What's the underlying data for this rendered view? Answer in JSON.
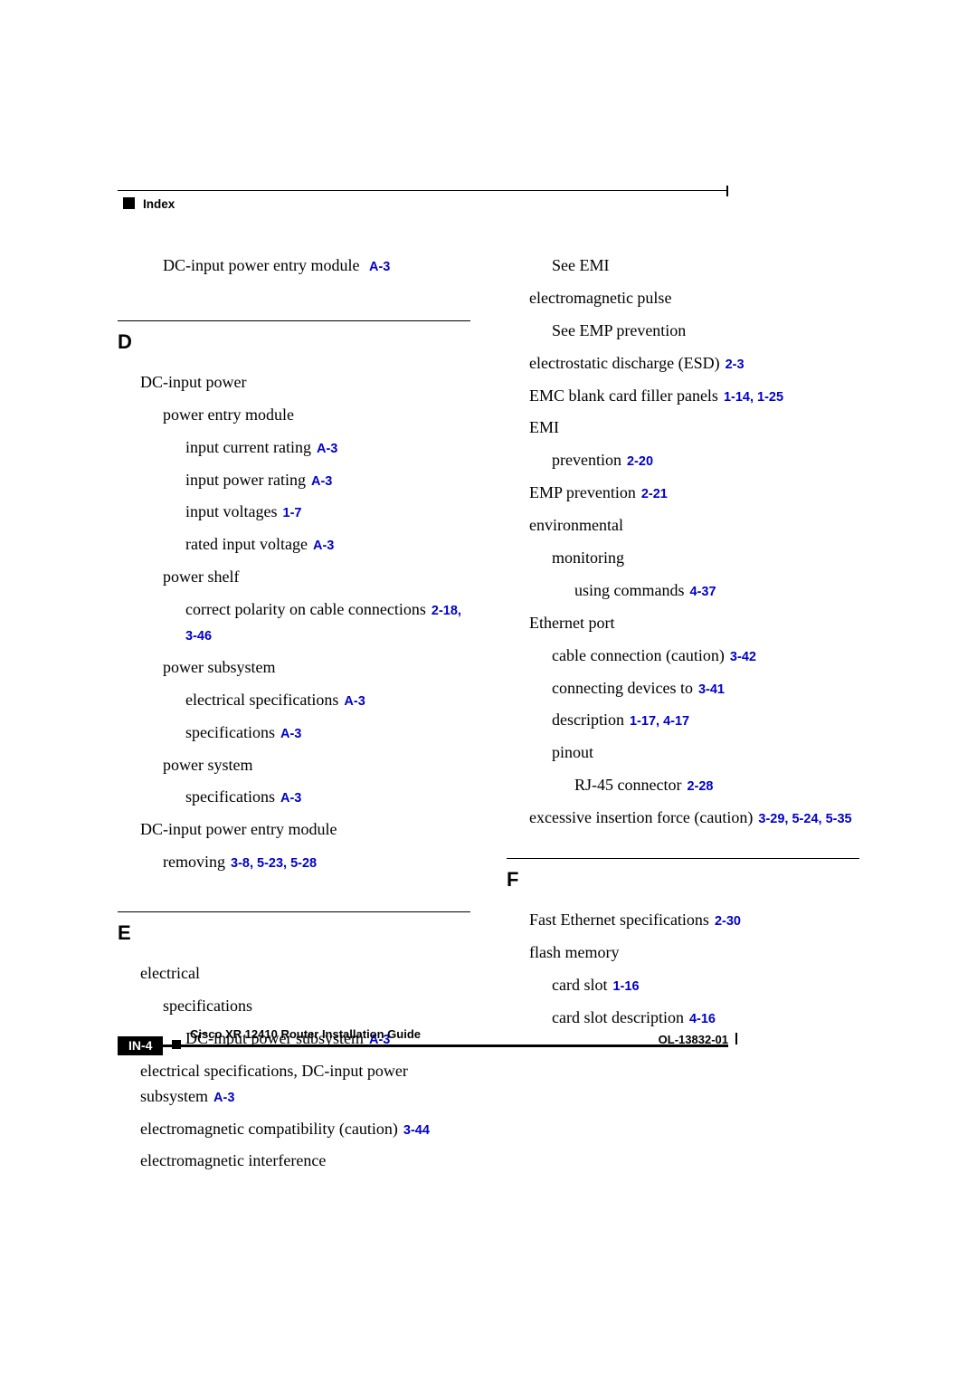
{
  "header": {
    "label": "Index"
  },
  "footer": {
    "title": "Cisco XR 12410 Router Installation Guide",
    "page": "IN-4",
    "doc": "OL-13832-01"
  },
  "link_color": "#0000cc",
  "col1": {
    "pre": {
      "text": "DC-input power entry module",
      "refs": "A-3",
      "lvl": 2
    },
    "sectD": {
      "letter": "D",
      "entries": [
        {
          "text": "DC-input power",
          "lvl": 1
        },
        {
          "text": "power entry module",
          "lvl": 2
        },
        {
          "text": "input current rating",
          "refs": "A-3",
          "lvl": 3
        },
        {
          "text": "input power rating",
          "refs": "A-3",
          "lvl": 3
        },
        {
          "text": "input voltages",
          "refs": "1-7",
          "lvl": 3
        },
        {
          "text": "rated input voltage",
          "refs": "A-3",
          "lvl": 3
        },
        {
          "text": "power shelf",
          "lvl": 2
        },
        {
          "text": "correct polarity on cable connections",
          "refs": "2-18, 3-46",
          "lvl": 3
        },
        {
          "text": "power subsystem",
          "lvl": 2
        },
        {
          "text": "electrical specifications",
          "refs": "A-3",
          "lvl": 3
        },
        {
          "text": "specifications",
          "refs": "A-3",
          "lvl": 3
        },
        {
          "text": "power system",
          "lvl": 2
        },
        {
          "text": "specifications",
          "refs": "A-3",
          "lvl": 3
        },
        {
          "text": "DC-input power entry module",
          "lvl": 1
        },
        {
          "text": "removing",
          "refs": "3-8, 5-23, 5-28",
          "lvl": 2
        }
      ]
    },
    "sectE": {
      "letter": "E",
      "entries": [
        {
          "text": "electrical",
          "lvl": 1
        },
        {
          "text": "specifications",
          "lvl": 2
        },
        {
          "text": "DC-input power subsystem",
          "refs": "A-3",
          "lvl": 3
        },
        {
          "text": "electrical specifications, DC-input power subsystem",
          "refs": "A-3",
          "lvl": 1
        },
        {
          "text": "electromagnetic compatibility (caution)",
          "refs": "3-44",
          "lvl": 1
        },
        {
          "text": "electromagnetic interference",
          "lvl": 1
        }
      ]
    }
  },
  "col2": {
    "entries": [
      {
        "text": "See EMI",
        "lvl": 2
      },
      {
        "text": "electromagnetic pulse",
        "lvl": 1
      },
      {
        "text": "See EMP prevention",
        "lvl": 2
      },
      {
        "text": "electrostatic discharge (ESD)",
        "refs": "2-3",
        "lvl": 1
      },
      {
        "text": "EMC blank card filler panels",
        "refs": "1-14, 1-25",
        "lvl": 1
      },
      {
        "text": "EMI",
        "lvl": 1
      },
      {
        "text": "prevention",
        "refs": "2-20",
        "lvl": 2
      },
      {
        "text": "EMP prevention",
        "refs": "2-21",
        "lvl": 1
      },
      {
        "text": "environmental",
        "lvl": 1
      },
      {
        "text": "monitoring",
        "lvl": 2
      },
      {
        "text": "using commands",
        "refs": "4-37",
        "lvl": 3
      },
      {
        "text": "Ethernet port",
        "lvl": 1
      },
      {
        "text": "cable connection (caution)",
        "refs": "3-42",
        "lvl": 2
      },
      {
        "text": "connecting devices to",
        "refs": "3-41",
        "lvl": 2
      },
      {
        "text": "description",
        "refs": "1-17, 4-17",
        "lvl": 2
      },
      {
        "text": "pinout",
        "lvl": 2
      },
      {
        "text": "RJ-45 connector",
        "refs": "2-28",
        "lvl": 3
      },
      {
        "text": "excessive insertion force (caution)",
        "refs": "3-29, 5-24, 5-35",
        "lvl": 1
      }
    ],
    "sectF": {
      "letter": "F",
      "entries": [
        {
          "text": "Fast Ethernet specifications",
          "refs": "2-30",
          "lvl": 1
        },
        {
          "text": "flash memory",
          "lvl": 1
        },
        {
          "text": "card slot",
          "refs": "1-16",
          "lvl": 2
        },
        {
          "text": "card slot description",
          "refs": "4-16",
          "lvl": 2
        }
      ]
    }
  }
}
